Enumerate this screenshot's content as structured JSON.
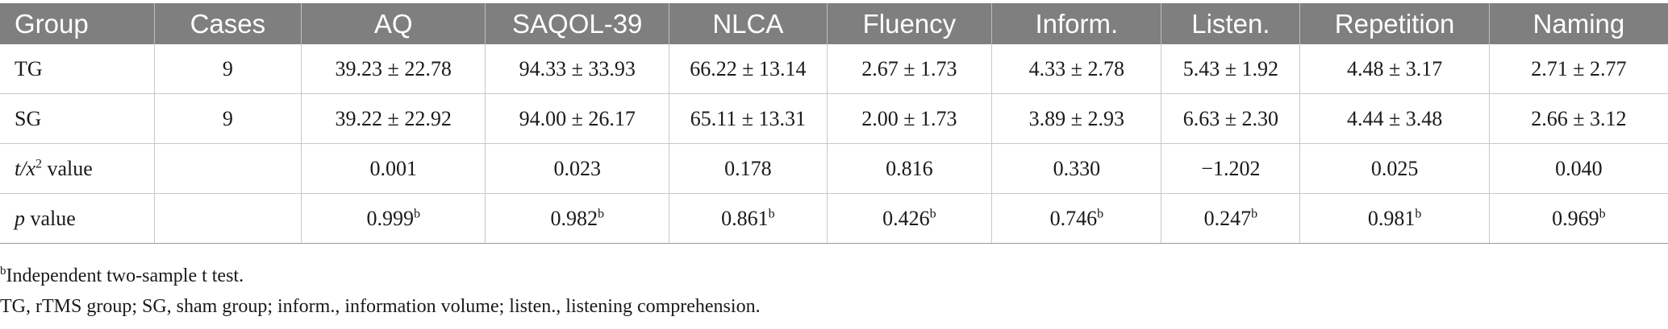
{
  "headers": [
    "Group",
    "Cases",
    "AQ",
    "SAQOL-39",
    "NLCA",
    "Fluency",
    "Inform.",
    "Listen.",
    "Repetition",
    "Naming"
  ],
  "rows": [
    {
      "group": "TG",
      "cases": "9",
      "aq": "39.23 ± 22.78",
      "saqol": "94.33 ± 33.93",
      "nlca": "66.22 ± 13.14",
      "fluency": "2.67 ± 1.73",
      "inform": "4.33 ± 2.78",
      "listen": "5.43 ± 1.92",
      "repetition": "4.48 ± 3.17",
      "naming": "2.71 ± 2.77"
    },
    {
      "group": "SG",
      "cases": "9",
      "aq": "39.22 ± 22.92",
      "saqol": "94.00 ± 26.17",
      "nlca": "65.11 ± 13.31",
      "fluency": "2.00 ± 1.73",
      "inform": "3.89 ± 2.93",
      "listen": "6.63 ± 2.30",
      "repetition": "4.44 ± 3.48",
      "naming": "2.66 ± 3.12"
    }
  ],
  "t_row": {
    "label_italic": "t/x",
    "label_sup": "2",
    "label_rest": " value",
    "values": [
      "0.001",
      "0.023",
      "0.178",
      "0.816",
      "0.330",
      "−1.202",
      "0.025",
      "0.040"
    ]
  },
  "p_row": {
    "label_italic": "p",
    "label_rest": " value",
    "values": [
      "0.999",
      "0.982",
      "0.861",
      "0.426",
      "0.746",
      "0.247",
      "0.981",
      "0.969"
    ],
    "sup": "b"
  },
  "notes": {
    "footnote_sup": "b",
    "footnote_text": "Independent two-sample t test.",
    "abbreviations": "TG, rTMS group; SG, sham group; inform., information volume; listen., listening comprehension."
  }
}
